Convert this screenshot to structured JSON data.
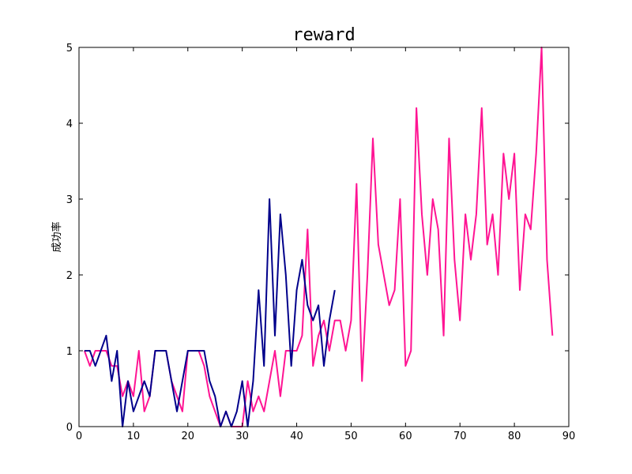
{
  "chart_data": {
    "type": "line",
    "title": "reward",
    "xlabel": "",
    "ylabel": "成功率",
    "xlim": [
      0,
      90
    ],
    "ylim": [
      0,
      5
    ],
    "xticks": [
      0,
      10,
      20,
      30,
      40,
      50,
      60,
      70,
      80,
      90
    ],
    "yticks": [
      0,
      1,
      2,
      3,
      4,
      5
    ],
    "grid": false,
    "series": [
      {
        "color": "#ff1493",
        "x": [
          1,
          2,
          3,
          4,
          5,
          6,
          7,
          8,
          9,
          10,
          11,
          12,
          13,
          14,
          15,
          16,
          17,
          18,
          19,
          20,
          21,
          22,
          23,
          24,
          25,
          26,
          27,
          28,
          29,
          30,
          31,
          32,
          33,
          34,
          35,
          36,
          37,
          38,
          39,
          40,
          41,
          42,
          43,
          44,
          45,
          46,
          47,
          48,
          49,
          50,
          51,
          52,
          53,
          54,
          55,
          56,
          57,
          58,
          59,
          60,
          61,
          62,
          63,
          64,
          65,
          66,
          67,
          68,
          69,
          70,
          71,
          72,
          73,
          74,
          75,
          76,
          77,
          78,
          79,
          80,
          81,
          82,
          83,
          84,
          85,
          86,
          87
        ],
        "y": [
          1,
          0.8,
          1,
          1,
          1,
          0.8,
          0.8,
          0.4,
          0.6,
          0.4,
          1,
          0.2,
          0.4,
          1,
          1,
          1,
          0.6,
          0.4,
          0.2,
          1,
          1,
          1,
          0.8,
          0.4,
          0.2,
          0,
          0.2,
          0,
          0,
          0,
          0.6,
          0.2,
          0.4,
          0.2,
          0.6,
          1,
          0.4,
          1,
          1,
          1,
          1.2,
          2.6,
          0.8,
          1.2,
          1.4,
          1,
          1.4,
          1.4,
          1,
          1.4,
          3.2,
          0.6,
          2,
          3.8,
          2.4,
          2,
          1.6,
          1.8,
          3,
          0.8,
          1,
          4.2,
          2.8,
          2,
          3,
          2.6,
          1.2,
          3.8,
          2.2,
          1.4,
          2.8,
          2.2,
          2.8,
          4.2,
          2.4,
          2.8,
          2,
          3.6,
          3,
          3.6,
          1.8,
          2.8,
          2.6,
          3.6,
          5,
          2.2,
          1.2
        ]
      },
      {
        "color": "#00008b",
        "x": [
          1,
          2,
          3,
          4,
          5,
          6,
          7,
          8,
          9,
          10,
          11,
          12,
          13,
          14,
          15,
          16,
          17,
          18,
          19,
          20,
          21,
          22,
          23,
          24,
          25,
          26,
          27,
          28,
          29,
          30,
          31,
          32,
          33,
          34,
          35,
          36,
          37,
          38,
          39,
          40,
          41,
          42,
          43,
          44,
          45,
          46,
          47
        ],
        "y": [
          1,
          1,
          0.8,
          1,
          1.2,
          0.6,
          1,
          0,
          0.6,
          0.2,
          0.4,
          0.6,
          0.4,
          1,
          1,
          1,
          0.6,
          0.2,
          0.6,
          1,
          1,
          1,
          1,
          0.6,
          0.4,
          0,
          0.2,
          0,
          0.2,
          0.6,
          0,
          0.6,
          1.8,
          0.8,
          3,
          1.2,
          2.8,
          2,
          0.8,
          1.8,
          2.2,
          1.6,
          1.4,
          1.6,
          0.8,
          1.4,
          1.8
        ]
      }
    ]
  }
}
